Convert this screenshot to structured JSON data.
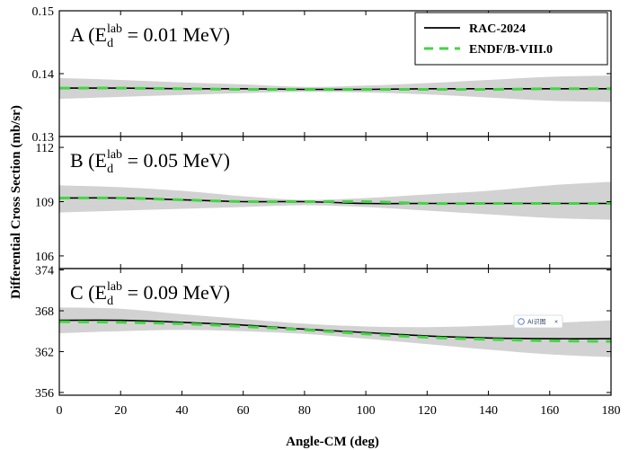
{
  "chart_data": {
    "type": "line",
    "xlabel": "Angle-CM (deg)",
    "ylabel": "Differential Cross Section (mb/sr)",
    "xlim": [
      0,
      180
    ],
    "x_ticks": [
      0,
      20,
      40,
      60,
      80,
      100,
      120,
      140,
      160,
      180
    ],
    "legend": {
      "position": "top-right",
      "entries": [
        {
          "name": "RAC-2024",
          "color": "#000000",
          "style": "solid"
        },
        {
          "name": "ENDF/B-VIII.0",
          "color": "#44d444",
          "style": "dashed"
        }
      ]
    },
    "badge": "AI识图",
    "panels": [
      {
        "label_prefix": "A (E",
        "label_sup": "lab",
        "label_sub": "d",
        "label_suffix": " = 0.01 MeV)",
        "ylim": [
          0.13,
          0.15
        ],
        "y_ticks": [
          "0.13",
          "0.14",
          "0.15"
        ],
        "y_tick_values": [
          0.13,
          0.14,
          0.15
        ],
        "x": [
          0,
          20,
          40,
          60,
          80,
          100,
          120,
          140,
          160,
          180
        ],
        "series": [
          {
            "name": "RAC-2024",
            "values": [
              0.1377,
              0.1377,
              0.1376,
              0.1376,
              0.1375,
              0.1375,
              0.1376,
              0.1376,
              0.1376,
              0.1376
            ]
          },
          {
            "name": "ENDF/B-VIII.0",
            "values": [
              0.1377,
              0.1377,
              0.1376,
              0.1375,
              0.1375,
              0.1375,
              0.1375,
              0.1375,
              0.1376,
              0.1376
            ]
          }
        ],
        "band_lower": [
          0.136,
          0.1363,
          0.1366,
          0.1369,
          0.1371,
          0.137,
          0.1367,
          0.1362,
          0.1357,
          0.1355
        ],
        "band_upper": [
          0.1393,
          0.139,
          0.1386,
          0.1383,
          0.1379,
          0.1381,
          0.1385,
          0.139,
          0.1395,
          0.1397
        ]
      },
      {
        "label_prefix": "B (E",
        "label_sup": "lab",
        "label_sub": "d",
        "label_suffix": " = 0.05 MeV)",
        "ylim": [
          105.3,
          112.6
        ],
        "y_ticks": [
          "106",
          "109",
          "112"
        ],
        "y_tick_values": [
          106,
          109,
          112
        ],
        "x": [
          0,
          20,
          40,
          60,
          80,
          100,
          120,
          140,
          160,
          180
        ],
        "series": [
          {
            "name": "RAC-2024",
            "values": [
              109.2,
              109.2,
              109.1,
              109.0,
              109.0,
              108.9,
              108.9,
              108.9,
              108.9,
              108.9
            ]
          },
          {
            "name": "ENDF/B-VIII.0",
            "values": [
              109.2,
              109.2,
              109.1,
              109.0,
              109.0,
              109.0,
              108.9,
              108.9,
              108.9,
              108.9
            ]
          }
        ],
        "band_lower": [
          108.4,
          108.5,
          108.6,
          108.7,
          108.8,
          108.7,
          108.5,
          108.3,
          108.1,
          108.0
        ],
        "band_upper": [
          109.9,
          109.8,
          109.6,
          109.3,
          109.1,
          109.2,
          109.4,
          109.6,
          109.9,
          110.1
        ]
      },
      {
        "label_prefix": "C (E",
        "label_sup": "lab",
        "label_sub": "d",
        "label_suffix": " = 0.09 MeV)",
        "ylim": [
          355.6,
          374.2
        ],
        "y_ticks": [
          "356",
          "362",
          "368",
          "374"
        ],
        "y_tick_values": [
          356,
          362,
          368,
          374
        ],
        "x": [
          0,
          20,
          40,
          60,
          80,
          100,
          120,
          140,
          160,
          180
        ],
        "series": [
          {
            "name": "RAC-2024",
            "values": [
              366.6,
              366.6,
              366.3,
              365.9,
              365.3,
              364.8,
              364.3,
              364.0,
              363.9,
              363.9
            ]
          },
          {
            "name": "ENDF/B-VIII.0",
            "values": [
              366.4,
              366.3,
              366.1,
              365.7,
              365.2,
              364.6,
              364.1,
              363.8,
              363.6,
              363.5
            ]
          }
        ],
        "band_lower": [
          364.7,
          365.0,
          365.2,
          365.0,
          364.6,
          363.9,
          363.1,
          362.3,
          361.6,
          361.2
        ],
        "band_upper": [
          368.5,
          368.3,
          367.5,
          366.8,
          366.1,
          365.7,
          365.6,
          365.8,
          366.2,
          366.6
        ]
      }
    ]
  }
}
